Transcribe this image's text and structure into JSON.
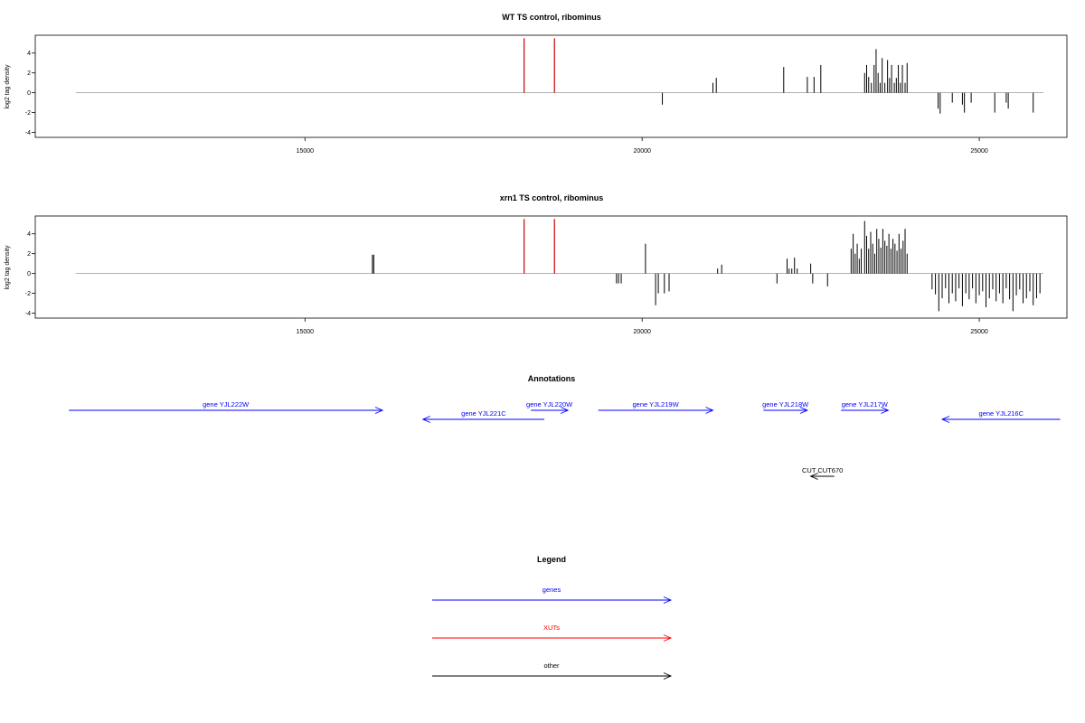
{
  "chart_data": [
    {
      "type": "bar",
      "title": "WT TS control, ribominus",
      "ylabel": "log2 tag density",
      "xlim": [
        11000,
        26300
      ],
      "ylim": [
        -4.5,
        5.8
      ],
      "xticks": [
        15000,
        20000,
        25000
      ],
      "yticks": [
        -4,
        -2,
        0,
        2,
        4
      ],
      "baseline": {
        "x": [
          11600,
          25950
        ],
        "color": "#999999"
      },
      "series": [
        {
          "color": "#cc0000",
          "x": [
            18250,
            18700
          ],
          "values": [
            5.5,
            5.5
          ]
        },
        {
          "color": "#000000",
          "x": [
            20300,
            21050,
            21100,
            22100,
            22450,
            22550,
            22650,
            23300,
            23330,
            23360,
            23400,
            23440,
            23470,
            23500,
            23530,
            23560,
            23600,
            23640,
            23670,
            23700,
            23740,
            23770,
            23800,
            23830,
            23860,
            23900,
            23930,
            24390,
            24420,
            24600,
            24750,
            24780,
            24880,
            25230,
            25400,
            25430,
            25800
          ],
          "values": [
            -1.2,
            1.0,
            1.5,
            2.6,
            1.6,
            1.6,
            2.8,
            2.0,
            2.8,
            1.6,
            1.0,
            2.8,
            4.4,
            2.0,
            1.0,
            3.5,
            1.0,
            3.3,
            1.5,
            2.8,
            1.0,
            1.5,
            2.8,
            1.0,
            2.8,
            1.0,
            3.0,
            -1.6,
            -2.1,
            -1.0,
            -1.2,
            -2.0,
            -1.0,
            -2.0,
            -1.0,
            -1.6,
            -2.0
          ]
        }
      ]
    },
    {
      "type": "bar",
      "title": "xrn1 TS control, ribominus",
      "ylabel": "log2 tag density",
      "xlim": [
        11000,
        26300
      ],
      "ylim": [
        -4.5,
        5.8
      ],
      "xticks": [
        15000,
        20000,
        25000
      ],
      "yticks": [
        -4,
        -2,
        0,
        2,
        4
      ],
      "baseline": {
        "x": [
          11600,
          25950
        ],
        "color": "#999999"
      },
      "series": [
        {
          "color": "#cc0000",
          "x": [
            18250,
            18700
          ],
          "values": [
            5.5,
            5.5
          ]
        },
        {
          "color": "#000000",
          "x": [
            16000,
            16020,
            19620,
            19650,
            19690,
            20050,
            20200,
            20240,
            20330,
            20400,
            21120,
            21180,
            22000,
            22150,
            22180,
            22220,
            22260,
            22300,
            22500,
            22530,
            22750,
            23100,
            23130,
            23160,
            23190,
            23220,
            23250,
            23300,
            23330,
            23360,
            23390,
            23420,
            23450,
            23480,
            23510,
            23540,
            23570,
            23600,
            23630,
            23660,
            23690,
            23720,
            23750,
            23780,
            23810,
            23840,
            23870,
            23900,
            23930,
            24300,
            24350,
            24400,
            24450,
            24500,
            24550,
            24600,
            24650,
            24700,
            24750,
            24800,
            24850,
            24900,
            24950,
            25000,
            25050,
            25100,
            25150,
            25200,
            25250,
            25300,
            25350,
            25400,
            25450,
            25500,
            25550,
            25600,
            25650,
            25700,
            25750,
            25800,
            25850,
            25900
          ],
          "values": [
            1.9,
            1.9,
            -1.0,
            -1.0,
            -1.0,
            3.0,
            -3.2,
            -2.0,
            -2.0,
            -1.8,
            0.5,
            0.9,
            -1.0,
            1.5,
            0.5,
            0.5,
            1.6,
            0.5,
            1.0,
            -1.0,
            -1.3,
            2.5,
            4.0,
            2.0,
            3.0,
            1.5,
            2.5,
            5.3,
            3.8,
            2.5,
            4.2,
            3.0,
            2.0,
            4.5,
            3.5,
            2.6,
            4.5,
            3.3,
            2.8,
            4.0,
            2.5,
            3.5,
            3.0,
            2.3,
            4.0,
            2.5,
            3.3,
            4.5,
            2.0,
            -1.6,
            -2.1,
            -3.8,
            -2.5,
            -1.5,
            -3.0,
            -2.0,
            -2.8,
            -1.5,
            -3.3,
            -2.0,
            -2.6,
            -1.5,
            -3.0,
            -2.2,
            -1.8,
            -3.4,
            -2.5,
            -1.6,
            -2.8,
            -2.0,
            -3.0,
            -1.5,
            -2.6,
            -3.8,
            -2.2,
            -1.6,
            -3.0,
            -2.5,
            -1.8,
            -3.2,
            -2.5,
            -2.0
          ]
        }
      ]
    }
  ],
  "annotations": {
    "title": "Annotations",
    "xlim": [
      11000,
      26300
    ],
    "items": [
      {
        "label": "gene YJL222W",
        "start": 11500,
        "end": 16150,
        "direction": "forward",
        "row": 0,
        "color": "#0000ff"
      },
      {
        "label": "gene YJL221C",
        "start": 16750,
        "end": 18550,
        "direction": "reverse",
        "row": 1,
        "color": "#0000ff"
      },
      {
        "label": "gene YJL220W",
        "start": 18350,
        "end": 18900,
        "direction": "forward",
        "row": 0,
        "color": "#0000ff"
      },
      {
        "label": "gene YJL219W",
        "start": 19350,
        "end": 21050,
        "direction": "forward",
        "row": 0,
        "color": "#0000ff"
      },
      {
        "label": "gene YJL218W",
        "start": 21800,
        "end": 22450,
        "direction": "forward",
        "row": 0,
        "color": "#0000ff"
      },
      {
        "label": "gene YJL217W",
        "start": 22950,
        "end": 23650,
        "direction": "forward",
        "row": 0,
        "color": "#0000ff"
      },
      {
        "label": "gene YJL216C",
        "start": 24450,
        "end": 26200,
        "direction": "reverse",
        "row": 1,
        "color": "#0000ff"
      },
      {
        "label": "CUT CUT670",
        "start": 22500,
        "end": 22850,
        "direction": "reverse",
        "row": 2,
        "color": "#000000"
      }
    ]
  },
  "legend": {
    "title": "Legend",
    "items": [
      {
        "label": "genes",
        "color": "#0000ff"
      },
      {
        "label": "XUTs",
        "color": "#ff0000"
      },
      {
        "label": "other",
        "color": "#000000"
      }
    ]
  }
}
